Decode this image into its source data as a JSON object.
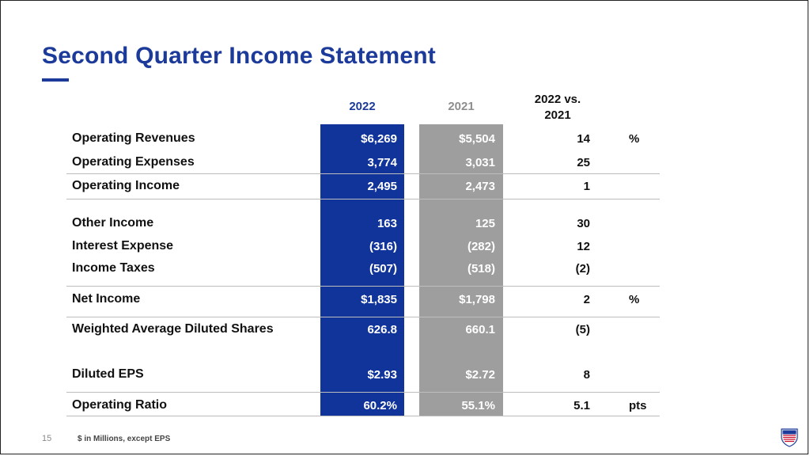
{
  "slide": {
    "title": "Second Quarter Income Statement",
    "page_number": "15",
    "footnote": "$ in Millions, except EPS"
  },
  "columns": {
    "current": "2022",
    "prior": "2021",
    "change_line1": "2022 vs.",
    "change_line2": "2021"
  },
  "rows": [
    {
      "label": "Operating Revenues",
      "v2022": "$6,269",
      "v2021": "$5,504",
      "change": "14",
      "unit": "%"
    },
    {
      "label": "Operating Expenses",
      "v2022": "3,774",
      "v2021": "3,031",
      "change": "25",
      "unit": ""
    },
    {
      "label": "Operating Income",
      "v2022": "2,495",
      "v2021": "2,473",
      "change": "1",
      "unit": ""
    },
    {
      "label": "Other Income",
      "v2022": "163",
      "v2021": "125",
      "change": "30",
      "unit": ""
    },
    {
      "label": "Interest Expense",
      "v2022": "(316)",
      "v2021": "(282)",
      "change": "12",
      "unit": ""
    },
    {
      "label": "Income Taxes",
      "v2022": "(507)",
      "v2021": "(518)",
      "change": "(2)",
      "unit": ""
    },
    {
      "label": "Net Income",
      "v2022": "$1,835",
      "v2021": "$1,798",
      "change": "2",
      "unit": "%"
    },
    {
      "label": "Weighted Average Diluted Shares",
      "v2022": "626.8",
      "v2021": "660.1",
      "change": "(5)",
      "unit": ""
    },
    {
      "label": "Diluted EPS",
      "v2022": "$2.93",
      "v2021": "$2.72",
      "change": "8",
      "unit": ""
    },
    {
      "label": "Operating Ratio",
      "v2022": "60.2%",
      "v2021": "55.1%",
      "change": "5.1",
      "unit": "pts"
    }
  ],
  "colors": {
    "brand_blue": "#1b3a9a",
    "bar_2022": "#10349a",
    "bar_2021": "#9e9e9e"
  },
  "logo": {
    "icon": "union-pacific-shield-icon"
  }
}
